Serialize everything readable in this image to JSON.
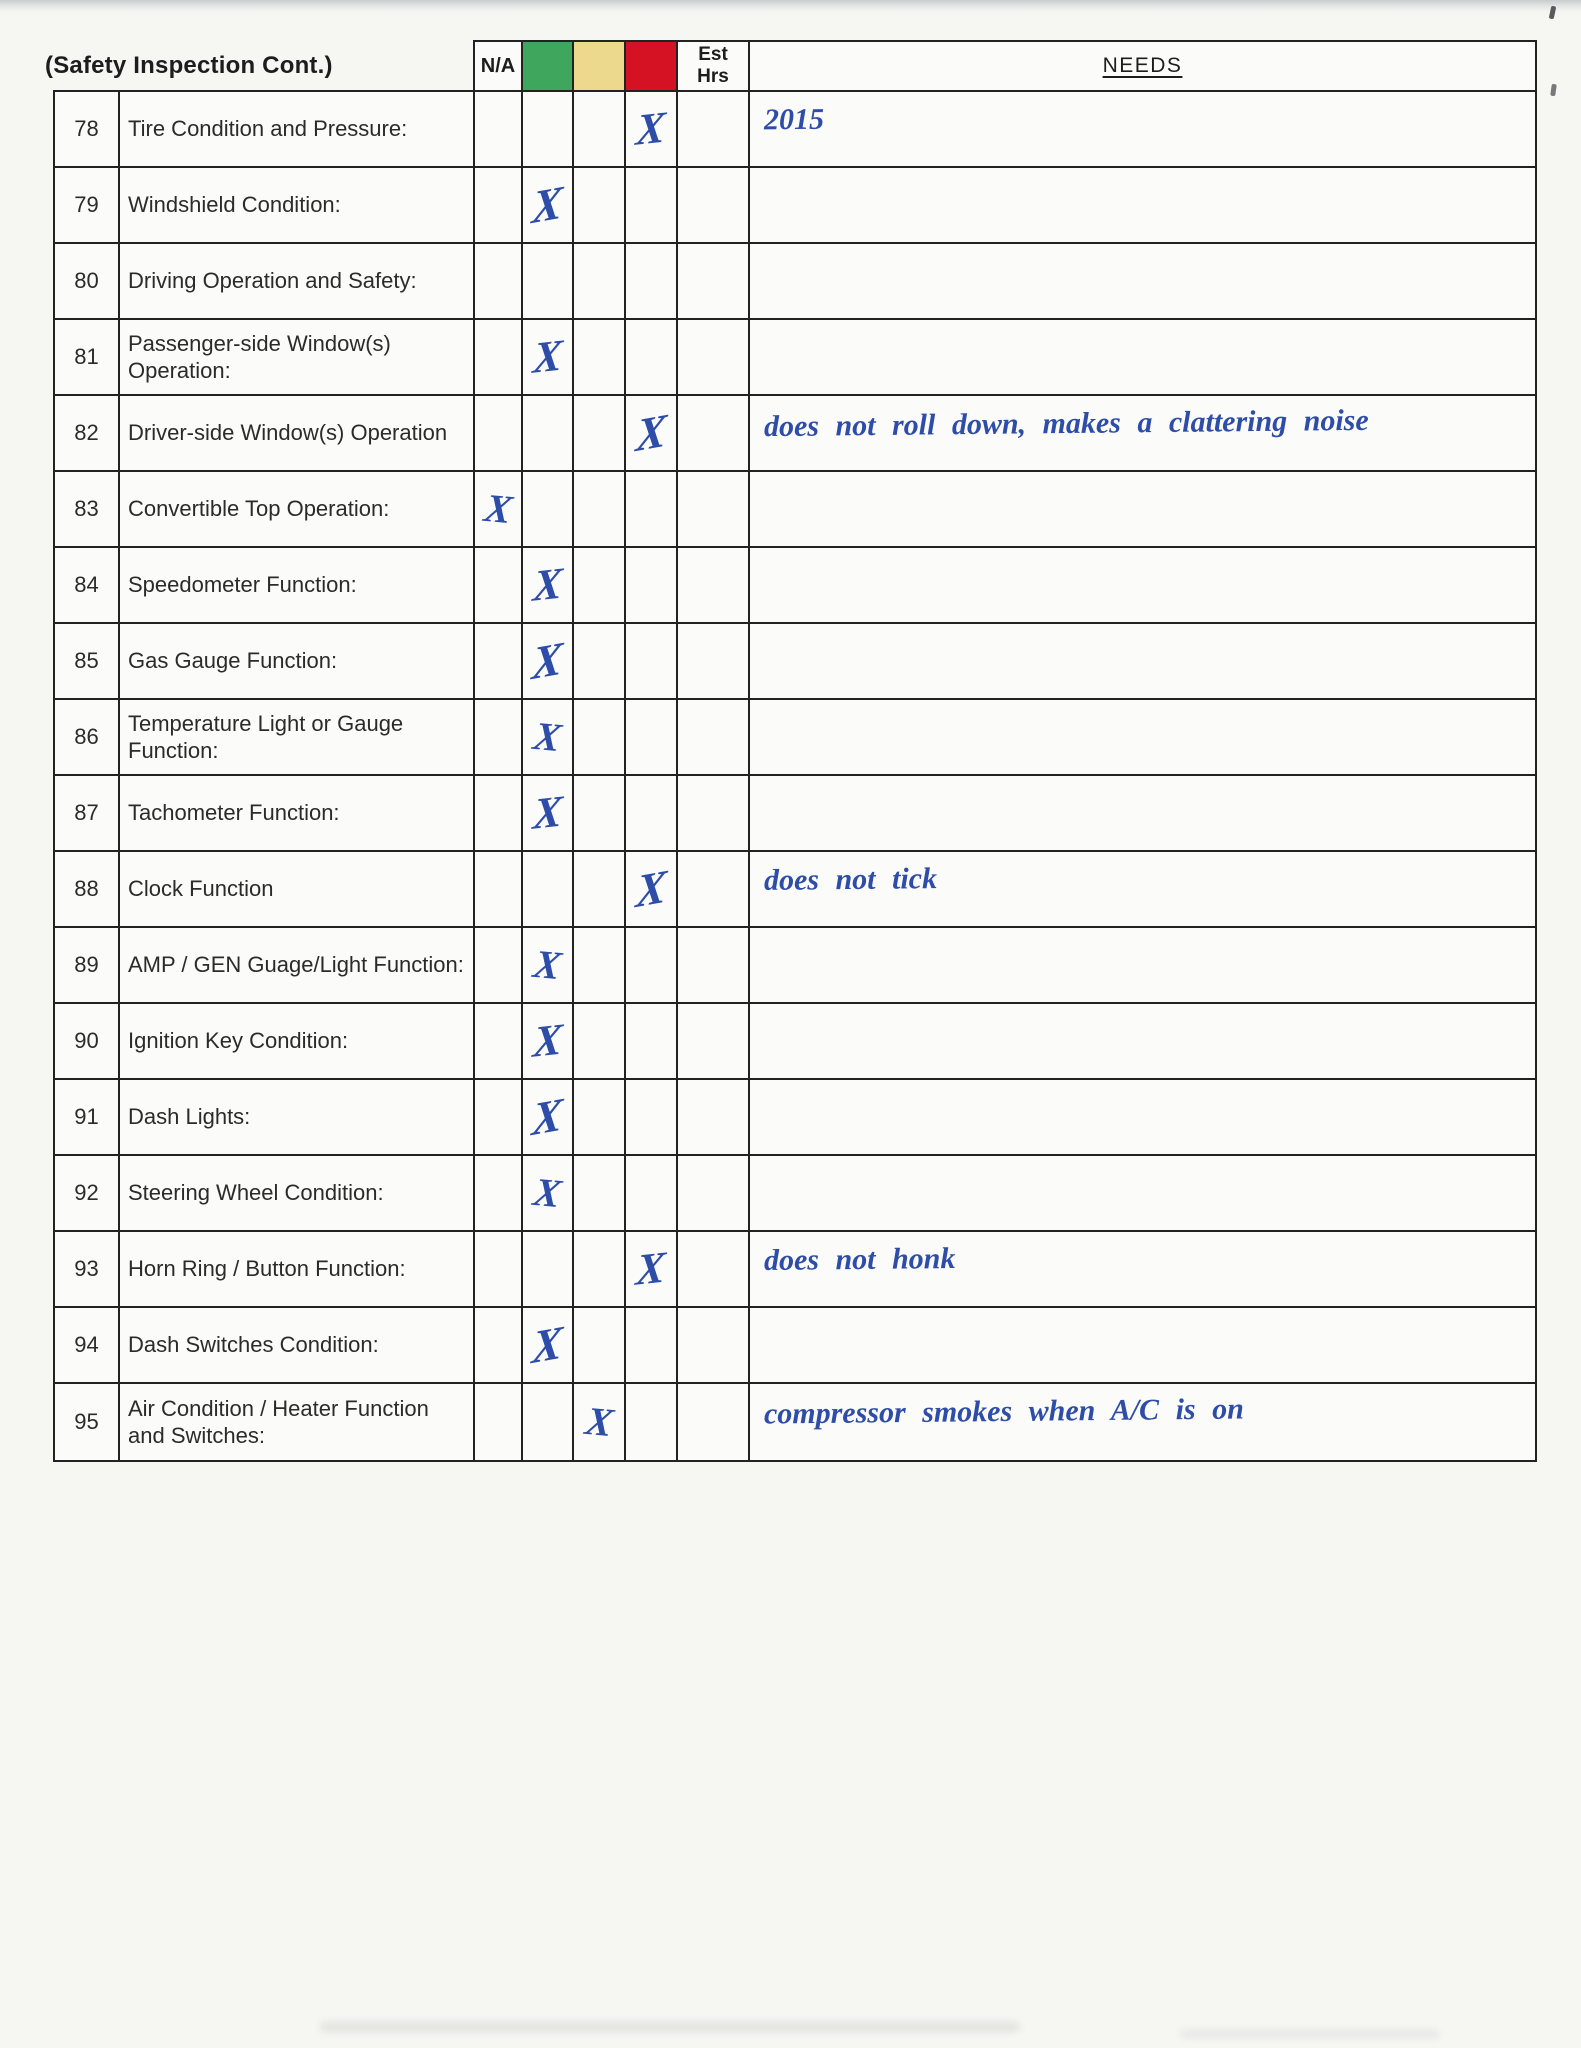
{
  "header": {
    "title": "(Safety Inspection Cont.)",
    "na_label": "N/A",
    "est_line1": "Est",
    "est_line2": "Hrs",
    "needs_label": "NEEDS"
  },
  "colors": {
    "green": "#3fa75d",
    "yellow": "#ecd98d",
    "red": "#d41223",
    "ink": "#2e4da8"
  },
  "mark_glyph": "X",
  "rows": [
    {
      "num": "78",
      "item": "Tire Condition and Pressure:",
      "mark": "red",
      "est_hrs": "",
      "needs": "2015"
    },
    {
      "num": "79",
      "item": "Windshield Condition:",
      "mark": "green",
      "est_hrs": "",
      "needs": ""
    },
    {
      "num": "80",
      "item": "Driving Operation and Safety:",
      "mark": "",
      "est_hrs": "",
      "needs": ""
    },
    {
      "num": "81",
      "item": "Passenger-side Window(s) Operation:",
      "mark": "green",
      "est_hrs": "",
      "needs": ""
    },
    {
      "num": "82",
      "item": "Driver-side Window(s) Operation",
      "mark": "red",
      "est_hrs": "",
      "needs": "does not roll down, makes a clattering noise"
    },
    {
      "num": "83",
      "item": "Convertible Top Operation:",
      "mark": "na",
      "est_hrs": "",
      "needs": ""
    },
    {
      "num": "84",
      "item": "Speedometer Function:",
      "mark": "green",
      "est_hrs": "",
      "needs": ""
    },
    {
      "num": "85",
      "item": "Gas Gauge Function:",
      "mark": "green",
      "est_hrs": "",
      "needs": ""
    },
    {
      "num": "86",
      "item": "Temperature Light or Gauge Function:",
      "mark": "green",
      "est_hrs": "",
      "needs": ""
    },
    {
      "num": "87",
      "item": "Tachometer Function:",
      "mark": "green",
      "est_hrs": "",
      "needs": ""
    },
    {
      "num": "88",
      "item": "Clock Function",
      "mark": "red",
      "est_hrs": "",
      "needs": "does not tick"
    },
    {
      "num": "89",
      "item": "AMP / GEN Guage/Light Function:",
      "mark": "green",
      "est_hrs": "",
      "needs": ""
    },
    {
      "num": "90",
      "item": "Ignition Key Condition:",
      "mark": "green",
      "est_hrs": "",
      "needs": ""
    },
    {
      "num": "91",
      "item": "Dash Lights:",
      "mark": "green",
      "est_hrs": "",
      "needs": ""
    },
    {
      "num": "92",
      "item": "Steering Wheel Condition:",
      "mark": "green",
      "est_hrs": "",
      "needs": ""
    },
    {
      "num": "93",
      "item": "Horn Ring / Button Function:",
      "mark": "red",
      "est_hrs": "",
      "needs": "does not honk"
    },
    {
      "num": "94",
      "item": "Dash Switches Condition:",
      "mark": "green",
      "est_hrs": "",
      "needs": ""
    },
    {
      "num": "95",
      "item": "Air Condition / Heater Function and Switches:",
      "mark": "yellow",
      "est_hrs": "",
      "needs": "compressor smokes when A/C is on"
    }
  ]
}
